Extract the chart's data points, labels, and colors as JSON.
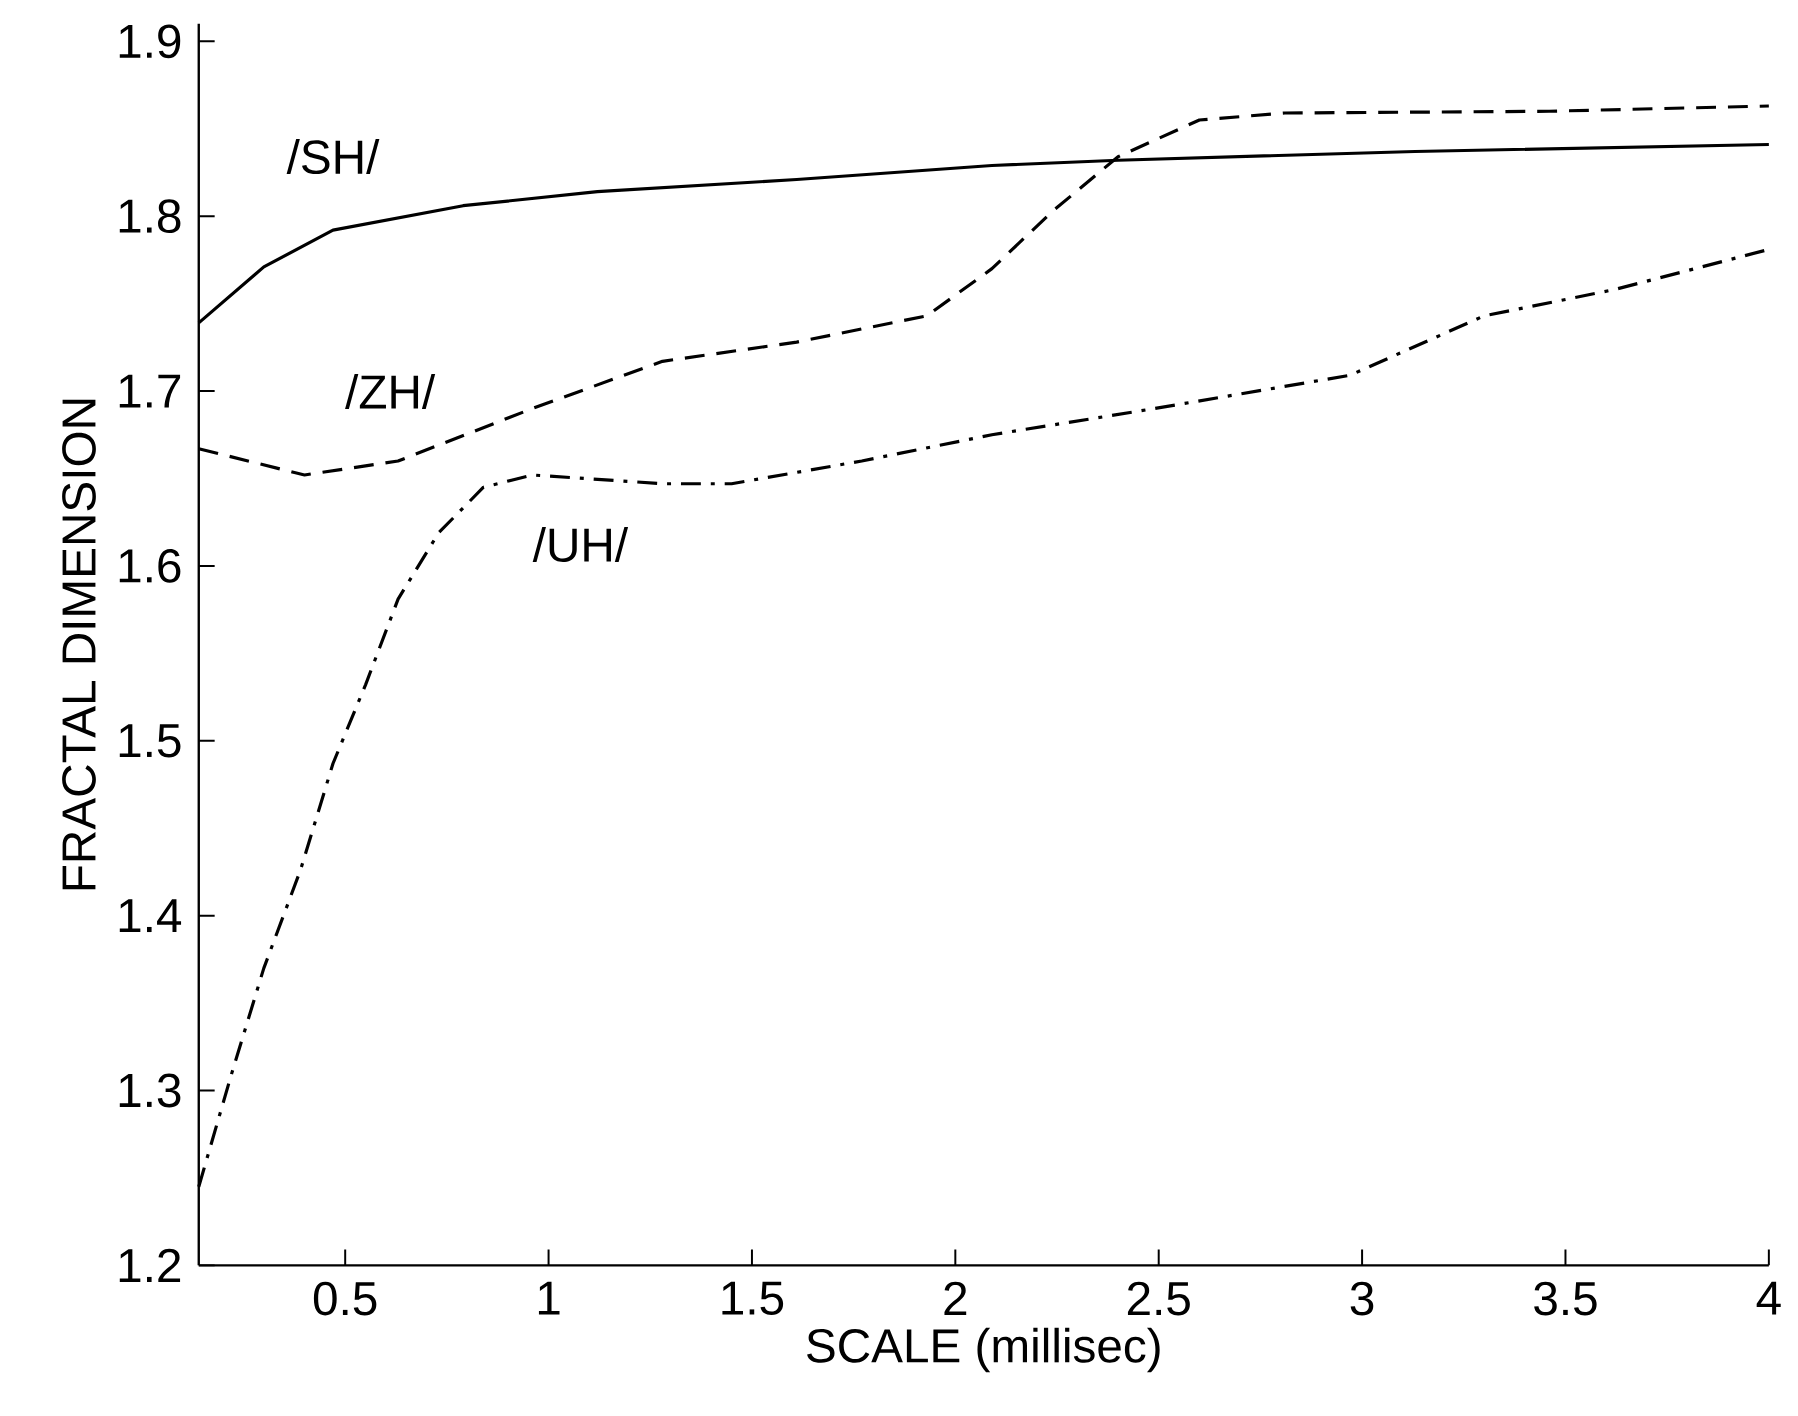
{
  "chart_data": {
    "type": "line",
    "xlabel": "SCALE (millisec)",
    "ylabel": "FRACTAL DIMENSION",
    "xlim": [
      0.14,
      4
    ],
    "ylim": [
      1.2,
      1.91
    ],
    "xticks": [
      0.5,
      1,
      1.5,
      2,
      2.5,
      3,
      3.5,
      4
    ],
    "yticks": [
      1.2,
      1.3,
      1.4,
      1.5,
      1.6,
      1.7,
      1.8,
      1.9
    ],
    "grid": false,
    "legend": false,
    "marker": "none",
    "series": [
      {
        "name": "/SH/",
        "color": "#000000",
        "line_style": "solid",
        "x": [
          0.14,
          0.3,
          0.47,
          0.79,
          1.12,
          1.61,
          2.09,
          2.4,
          3.13,
          4.0
        ],
        "values": [
          1.739,
          1.771,
          1.792,
          1.806,
          1.814,
          1.821,
          1.829,
          1.832,
          1.837,
          1.841
        ]
      },
      {
        "name": "/ZH/",
        "color": "#000000",
        "line_style": "dashed",
        "x": [
          0.14,
          0.4,
          0.63,
          0.96,
          1.28,
          1.61,
          1.93,
          2.09,
          2.24,
          2.4,
          2.6,
          2.81,
          3.46,
          4.0
        ],
        "values": [
          1.667,
          1.652,
          1.66,
          1.69,
          1.717,
          1.728,
          1.743,
          1.77,
          1.803,
          1.834,
          1.855,
          1.859,
          1.86,
          1.863
        ]
      },
      {
        "name": "/UH/",
        "color": "#000000",
        "line_style": "dashdot",
        "x": [
          0.14,
          0.22,
          0.3,
          0.39,
          0.47,
          0.55,
          0.63,
          0.73,
          0.84,
          0.96,
          1.28,
          1.45,
          1.77,
          2.09,
          2.49,
          2.97,
          3.3,
          3.62,
          4.0
        ],
        "values": [
          1.245,
          1.309,
          1.37,
          1.426,
          1.487,
          1.532,
          1.581,
          1.619,
          1.645,
          1.652,
          1.647,
          1.647,
          1.66,
          1.675,
          1.69,
          1.709,
          1.743,
          1.758,
          1.781
        ]
      }
    ]
  }
}
